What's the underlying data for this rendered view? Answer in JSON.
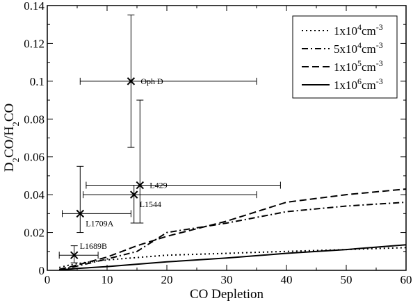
{
  "chart_data": {
    "type": "line",
    "xlabel": "CO Depletion",
    "ylabel_parts": [
      {
        "t": "D",
        "sub": false
      },
      {
        "t": "2",
        "sub": true
      },
      {
        "t": "CO/H",
        "sub": false
      },
      {
        "t": "2",
        "sub": true
      },
      {
        "t": "CO",
        "sub": false
      }
    ],
    "xlim": [
      0,
      60
    ],
    "ylim": [
      0,
      0.14
    ],
    "xticks": [
      0,
      10,
      20,
      30,
      40,
      50,
      60
    ],
    "xtick_labels": [
      "0",
      "10",
      "20",
      "30",
      "40",
      "50",
      "60"
    ],
    "yticks": [
      0,
      0.02,
      0.04,
      0.06,
      0.08,
      0.1,
      0.12,
      0.14
    ],
    "ytick_labels": [
      "0",
      "0.02",
      "0.04",
      "0.06",
      "0.08",
      "0.1",
      "0.12",
      "0.14"
    ],
    "grid": false,
    "legend_position": "top-right",
    "series": [
      {
        "name": "1x10^4 cm^-3",
        "legend_parts": [
          {
            "t": "1x10",
            "sup": false
          },
          {
            "t": "4",
            "sup": true
          },
          {
            "t": "cm",
            "sup": false
          },
          {
            "t": "-3",
            "sup": true
          }
        ],
        "dash": "dotted",
        "x": [
          2,
          4,
          6,
          10,
          20,
          30,
          40,
          50,
          60
        ],
        "y": [
          0.0015,
          0.003,
          0.004,
          0.0055,
          0.008,
          0.009,
          0.01,
          0.011,
          0.012
        ]
      },
      {
        "name": "5x10^4 cm^-3",
        "legend_parts": [
          {
            "t": "5x10",
            "sup": false
          },
          {
            "t": "4",
            "sup": true
          },
          {
            "t": "cm",
            "sup": false
          },
          {
            "t": "-3",
            "sup": true
          }
        ],
        "dash": "dashdot",
        "x": [
          2,
          4,
          10,
          15,
          20,
          30,
          40,
          50,
          60
        ],
        "y": [
          0.0005,
          0.0015,
          0.006,
          0.01,
          0.02,
          0.025,
          0.031,
          0.034,
          0.036
        ]
      },
      {
        "name": "1x10^5 cm^-3",
        "legend_parts": [
          {
            "t": "1x10",
            "sup": false
          },
          {
            "t": "5",
            "sup": true
          },
          {
            "t": "cm",
            "sup": false
          },
          {
            "t": "-3",
            "sup": true
          }
        ],
        "dash": "dashed",
        "x": [
          2,
          4,
          10,
          15,
          20,
          30,
          40,
          50,
          60
        ],
        "y": [
          0.0005,
          0.002,
          0.007,
          0.013,
          0.018,
          0.026,
          0.036,
          0.04,
          0.043
        ]
      },
      {
        "name": "1x10^6 cm^-3",
        "legend_parts": [
          {
            "t": "1x10",
            "sup": false
          },
          {
            "t": "6",
            "sup": true
          },
          {
            "t": "cm",
            "sup": false
          },
          {
            "t": "-3",
            "sup": true
          }
        ],
        "dash": "solid",
        "x": [
          2,
          5,
          10,
          20,
          30,
          40,
          50,
          60
        ],
        "y": [
          0.0002,
          0.001,
          0.002,
          0.0045,
          0.0065,
          0.009,
          0.011,
          0.0135
        ]
      }
    ],
    "points": [
      {
        "label": "Oph D",
        "x": 14,
        "y": 0.1,
        "xerr": [
          5.5,
          35
        ],
        "yerr": [
          0.065,
          0.135
        ],
        "label_pos": "right"
      },
      {
        "label": "L429",
        "x": 15.5,
        "y": 0.045,
        "xerr": [
          6.5,
          39
        ],
        "yerr": [
          0.025,
          0.09
        ],
        "label_pos": "right"
      },
      {
        "label": "L1544",
        "x": 14.5,
        "y": 0.04,
        "xerr": [
          6,
          35
        ],
        "yerr": [
          0.025,
          0.045
        ],
        "label_pos": "below-right"
      },
      {
        "label": "L1709A",
        "x": 5.5,
        "y": 0.03,
        "xerr": [
          2.5,
          14
        ],
        "yerr": [
          0.02,
          0.055
        ],
        "label_pos": "below-right"
      },
      {
        "label": "L1689B",
        "x": 4.5,
        "y": 0.008,
        "xerr": [
          2,
          8.5
        ],
        "yerr": [
          0.004,
          0.013
        ],
        "label_pos": "above-right"
      }
    ]
  }
}
